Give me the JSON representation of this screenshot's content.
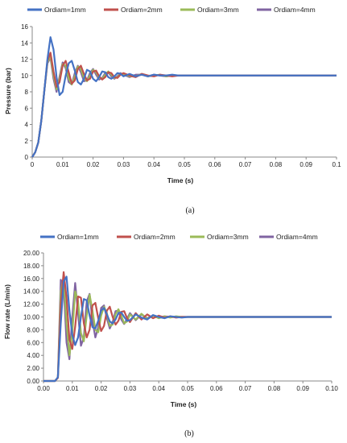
{
  "colors": {
    "series": [
      "#4472C4",
      "#C0504D",
      "#9BBB59",
      "#8064A2"
    ],
    "axis": "#888888",
    "background": "#ffffff"
  },
  "chart_data": [
    {
      "type": "line",
      "caption": "(a)",
      "xlabel": "Time (s)",
      "ylabel": "Pressure (bar)",
      "xlim": [
        0,
        0.1
      ],
      "ylim": [
        0,
        16
      ],
      "xticks": [
        "0",
        "0.01",
        "0.02",
        "0.03",
        "0.04",
        "0.05",
        "0.06",
        "0.07",
        "0.08",
        "0.09",
        "0.1"
      ],
      "yticks": [
        "0",
        "2",
        "4",
        "6",
        "8",
        "10",
        "12",
        "14",
        "16"
      ],
      "grid": false,
      "legend": "top",
      "series": [
        {
          "name": "Ordiam=1mm",
          "x": [
            0,
            0.001,
            0.002,
            0.003,
            0.004,
            0.005,
            0.006,
            0.007,
            0.008,
            0.009,
            0.01,
            0.011,
            0.012,
            0.013,
            0.014,
            0.015,
            0.016,
            0.017,
            0.018,
            0.019,
            0.02,
            0.021,
            0.022,
            0.023,
            0.024,
            0.025,
            0.026,
            0.027,
            0.028,
            0.029,
            0.03,
            0.032,
            0.034,
            0.036,
            0.038,
            0.04,
            0.042,
            0.044,
            0.046,
            0.048,
            0.05,
            0.055,
            0.06,
            0.07,
            0.08,
            0.09,
            0.1
          ],
          "y": [
            0,
            0.6,
            1.8,
            4.5,
            8.2,
            12.0,
            14.7,
            13.2,
            9.8,
            7.6,
            8.0,
            10.0,
            11.5,
            11.8,
            10.6,
            9.2,
            8.9,
            9.6,
            10.7,
            10.5,
            9.6,
            9.3,
            9.8,
            10.5,
            10.4,
            9.8,
            9.6,
            9.9,
            10.3,
            10.2,
            9.9,
            10.2,
            9.9,
            10.1,
            9.9,
            10.1,
            10.0,
            10.0,
            10.1,
            10.0,
            10.0,
            10.0,
            10.0,
            10.0,
            10.0,
            10.0,
            10.0
          ]
        },
        {
          "name": "Ordiam=2mm",
          "x": [
            0,
            0.001,
            0.002,
            0.003,
            0.004,
            0.005,
            0.006,
            0.007,
            0.008,
            0.009,
            0.01,
            0.011,
            0.012,
            0.013,
            0.014,
            0.015,
            0.016,
            0.017,
            0.018,
            0.019,
            0.02,
            0.021,
            0.022,
            0.023,
            0.024,
            0.025,
            0.026,
            0.027,
            0.028,
            0.029,
            0.03,
            0.032,
            0.034,
            0.036,
            0.038,
            0.04,
            0.042,
            0.044,
            0.046,
            0.048,
            0.05,
            0.055,
            0.06,
            0.07,
            0.08,
            0.09,
            0.1
          ],
          "y": [
            0,
            0.6,
            1.8,
            4.5,
            8.2,
            11.8,
            12.8,
            10.5,
            8.6,
            9.2,
            11.2,
            11.8,
            10.4,
            9.0,
            9.4,
            10.8,
            11.2,
            10.2,
            9.4,
            9.6,
            10.5,
            10.6,
            9.9,
            9.5,
            9.8,
            10.4,
            10.3,
            9.8,
            9.7,
            10.1,
            10.3,
            10.0,
            9.8,
            10.2,
            10.0,
            9.9,
            10.1,
            10.0,
            9.9,
            10.0,
            10.0,
            10.0,
            10.0,
            10.0,
            10.0,
            10.0,
            10.0
          ]
        },
        {
          "name": "Ordiam=3mm",
          "x": [
            0,
            0.001,
            0.002,
            0.003,
            0.004,
            0.005,
            0.006,
            0.007,
            0.008,
            0.009,
            0.01,
            0.011,
            0.012,
            0.013,
            0.014,
            0.015,
            0.016,
            0.017,
            0.018,
            0.019,
            0.02,
            0.021,
            0.022,
            0.023,
            0.024,
            0.025,
            0.026,
            0.027,
            0.028,
            0.029,
            0.03,
            0.032,
            0.034,
            0.036,
            0.038,
            0.04,
            0.042,
            0.044,
            0.046,
            0.048,
            0.05,
            0.055,
            0.06,
            0.07,
            0.08,
            0.09,
            0.1
          ],
          "y": [
            0,
            0.6,
            1.8,
            4.5,
            8.2,
            11.6,
            12.4,
            10.0,
            8.3,
            9.6,
            11.4,
            11.2,
            9.6,
            8.9,
            9.9,
            11.1,
            10.8,
            9.7,
            9.3,
            10.0,
            10.7,
            10.4,
            9.7,
            9.6,
            10.1,
            10.5,
            10.1,
            9.7,
            9.8,
            10.2,
            10.2,
            9.9,
            9.9,
            10.2,
            9.9,
            10.0,
            10.1,
            9.9,
            10.0,
            10.0,
            10.0,
            10.0,
            10.0,
            10.0,
            10.0,
            10.0,
            10.0
          ]
        },
        {
          "name": "Ordiam=4mm",
          "x": [
            0,
            0.001,
            0.002,
            0.003,
            0.004,
            0.005,
            0.006,
            0.007,
            0.008,
            0.009,
            0.01,
            0.011,
            0.012,
            0.013,
            0.014,
            0.015,
            0.016,
            0.017,
            0.018,
            0.019,
            0.02,
            0.021,
            0.022,
            0.023,
            0.024,
            0.025,
            0.026,
            0.027,
            0.028,
            0.029,
            0.03,
            0.032,
            0.034,
            0.036,
            0.038,
            0.04,
            0.042,
            0.044,
            0.046,
            0.048,
            0.05,
            0.055,
            0.06,
            0.07,
            0.08,
            0.09,
            0.1
          ],
          "y": [
            0,
            0.6,
            1.8,
            4.5,
            8.2,
            11.5,
            12.2,
            9.6,
            8.0,
            9.9,
            11.6,
            10.9,
            9.2,
            8.9,
            10.3,
            11.2,
            10.4,
            9.3,
            9.4,
            10.3,
            10.8,
            10.1,
            9.5,
            9.7,
            10.3,
            10.4,
            9.9,
            9.6,
            9.9,
            10.3,
            10.1,
            9.8,
            10.1,
            10.1,
            9.9,
            10.1,
            10.0,
            9.9,
            10.0,
            10.0,
            10.0,
            10.0,
            10.0,
            10.0,
            10.0,
            10.0,
            10.0
          ]
        }
      ]
    },
    {
      "type": "line",
      "caption": "(b)",
      "xlabel": "Time (s)",
      "ylabel": "Flow rate (L/min)",
      "xlim": [
        0,
        0.1
      ],
      "ylim": [
        0,
        20
      ],
      "xticks": [
        "0.00",
        "0.01",
        "0.02",
        "0.03",
        "0.04",
        "0.05",
        "0.06",
        "0.07",
        "0.08",
        "0.09",
        "0.10"
      ],
      "yticks": [
        "0.00",
        "2.00",
        "4.00",
        "6.00",
        "8.00",
        "10.00",
        "12.00",
        "14.00",
        "16.00",
        "18.00",
        "20.00"
      ],
      "grid": false,
      "legend": "top",
      "series": [
        {
          "name": "Ordiam=1mm",
          "x": [
            0,
            0.004,
            0.005,
            0.006,
            0.007,
            0.008,
            0.009,
            0.01,
            0.011,
            0.012,
            0.013,
            0.014,
            0.015,
            0.016,
            0.017,
            0.018,
            0.019,
            0.02,
            0.021,
            0.022,
            0.023,
            0.024,
            0.025,
            0.026,
            0.027,
            0.028,
            0.029,
            0.03,
            0.032,
            0.034,
            0.036,
            0.038,
            0.04,
            0.042,
            0.044,
            0.046,
            0.048,
            0.05,
            0.055,
            0.06,
            0.07,
            0.08,
            0.09,
            0.1
          ],
          "y": [
            0,
            0,
            0.6,
            9.0,
            15.5,
            16.3,
            11.0,
            7.2,
            5.6,
            6.8,
            10.0,
            12.8,
            12.6,
            10.2,
            8.4,
            8.2,
            9.4,
            11.0,
            11.4,
            10.4,
            9.3,
            9.0,
            9.6,
            10.6,
            10.7,
            10.0,
            9.4,
            9.5,
            10.4,
            9.9,
            9.6,
            10.3,
            10.0,
            9.8,
            10.1,
            10.0,
            9.9,
            10.0,
            10.0,
            10.0,
            10.0,
            10.0,
            10.0,
            10.0
          ]
        },
        {
          "name": "Ordiam=2mm",
          "x": [
            0,
            0.004,
            0.005,
            0.006,
            0.007,
            0.008,
            0.009,
            0.01,
            0.011,
            0.012,
            0.013,
            0.014,
            0.015,
            0.016,
            0.017,
            0.018,
            0.019,
            0.02,
            0.021,
            0.022,
            0.023,
            0.024,
            0.025,
            0.026,
            0.027,
            0.028,
            0.029,
            0.03,
            0.032,
            0.034,
            0.036,
            0.038,
            0.04,
            0.042,
            0.044,
            0.046,
            0.048,
            0.05,
            0.055,
            0.06,
            0.07,
            0.08,
            0.09,
            0.1
          ],
          "y": [
            0,
            0,
            0.5,
            12.0,
            17.0,
            13.0,
            6.5,
            5.0,
            8.5,
            13.2,
            13.0,
            9.0,
            6.8,
            8.0,
            11.8,
            12.2,
            9.8,
            7.8,
            8.6,
            11.0,
            11.6,
            10.0,
            8.8,
            9.4,
            10.8,
            10.9,
            9.8,
            9.2,
            10.6,
            9.6,
            10.4,
            9.8,
            10.2,
            9.9,
            10.1,
            9.9,
            10.0,
            10.0,
            10.0,
            10.0,
            10.0,
            10.0,
            10.0,
            10.0
          ]
        },
        {
          "name": "Ordiam=3mm",
          "x": [
            0,
            0.004,
            0.005,
            0.006,
            0.007,
            0.008,
            0.009,
            0.01,
            0.011,
            0.012,
            0.013,
            0.014,
            0.015,
            0.016,
            0.017,
            0.018,
            0.019,
            0.02,
            0.021,
            0.022,
            0.023,
            0.024,
            0.025,
            0.026,
            0.027,
            0.028,
            0.029,
            0.03,
            0.032,
            0.034,
            0.036,
            0.038,
            0.04,
            0.042,
            0.044,
            0.046,
            0.048,
            0.05,
            0.055,
            0.06,
            0.07,
            0.08,
            0.09,
            0.1
          ],
          "y": [
            0,
            0,
            0.5,
            14.0,
            16.2,
            9.0,
            4.0,
            7.5,
            14.0,
            12.5,
            7.5,
            6.2,
            10.2,
            13.5,
            11.0,
            8.0,
            7.6,
            10.2,
            11.6,
            10.6,
            8.6,
            8.8,
            10.4,
            11.2,
            10.2,
            9.0,
            9.3,
            10.4,
            9.6,
            10.5,
            9.7,
            10.2,
            9.8,
            10.1,
            9.9,
            10.1,
            10.0,
            10.0,
            10.0,
            10.0,
            10.0,
            10.0,
            10.0,
            10.0
          ]
        },
        {
          "name": "Ordiam=4mm",
          "x": [
            0,
            0.004,
            0.005,
            0.006,
            0.007,
            0.008,
            0.009,
            0.01,
            0.011,
            0.012,
            0.013,
            0.014,
            0.015,
            0.016,
            0.017,
            0.018,
            0.019,
            0.02,
            0.021,
            0.022,
            0.023,
            0.024,
            0.025,
            0.026,
            0.027,
            0.028,
            0.029,
            0.03,
            0.032,
            0.034,
            0.036,
            0.038,
            0.04,
            0.042,
            0.044,
            0.046,
            0.048,
            0.05,
            0.055,
            0.06,
            0.07,
            0.08,
            0.09,
            0.1
          ],
          "y": [
            0,
            0,
            0.5,
            15.8,
            15.0,
            6.0,
            3.4,
            10.0,
            15.3,
            10.6,
            5.5,
            6.8,
            12.4,
            13.6,
            9.4,
            6.8,
            8.4,
            11.4,
            11.8,
            9.8,
            8.2,
            9.2,
            10.9,
            11.0,
            9.6,
            8.9,
            9.7,
            10.6,
            9.5,
            10.4,
            9.8,
            10.2,
            9.9,
            10.1,
            10.0,
            10.0,
            10.0,
            10.0,
            10.0,
            10.0,
            10.0,
            10.0,
            10.0,
            10.0
          ]
        }
      ]
    }
  ]
}
